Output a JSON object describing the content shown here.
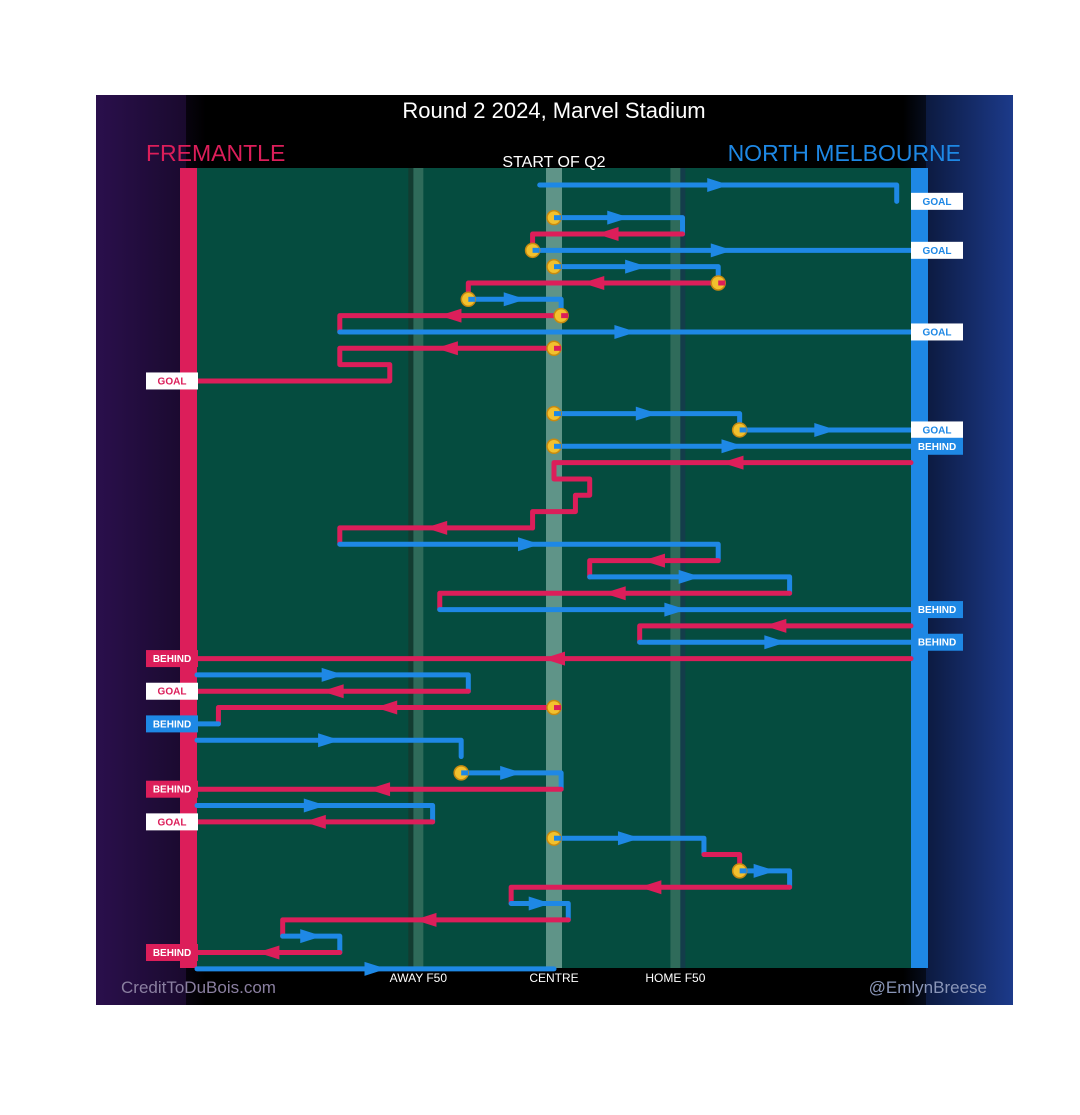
{
  "title": "Round 2 2024, Marvel Stadium",
  "subtitle": "START OF Q2",
  "teams": {
    "away": {
      "name": "FREMANTLE",
      "color": "#dc1e5a"
    },
    "home": {
      "name": "NORTH MELBOURNE",
      "color": "#1e88e5"
    }
  },
  "zone_labels": [
    "AWAY F50",
    "CENTRE",
    "HOME F50"
  ],
  "credits": {
    "left": "CreditToDuBois.com",
    "right": "@EmlynBreese"
  },
  "colors": {
    "field": "#054c3f",
    "stoppage_marker": "#f2c12e",
    "background_left": "#2a0f4c",
    "background_right": "#1c3a8a"
  },
  "chart_data": {
    "type": "line",
    "description_of_axes": "x: field position from Fremantle goal (0) to North Melbourne goal (100); y: chain order top to bottom",
    "x_range": [
      0,
      100
    ],
    "zones": {
      "away_f50": 31,
      "centre": 50,
      "home_f50": 67
    },
    "chains": [
      {
        "team": "home",
        "path": [
          [
            48,
            1
          ],
          [
            98,
            1
          ],
          [
            98,
            2
          ]
        ],
        "start": "pass",
        "end": "GOAL"
      },
      {
        "team": "home",
        "path": [
          [
            50,
            3
          ],
          [
            68,
            3
          ],
          [
            68,
            4
          ]
        ],
        "start": "stoppage",
        "end": null
      },
      {
        "team": "away",
        "path": [
          [
            68,
            4
          ],
          [
            47,
            4
          ],
          [
            47,
            5
          ]
        ],
        "start": "pass",
        "end": null
      },
      {
        "team": "home",
        "path": [
          [
            47,
            5
          ],
          [
            100,
            5
          ]
        ],
        "start": "stoppage",
        "end": "GOAL"
      },
      {
        "team": "home",
        "path": [
          [
            50,
            6
          ],
          [
            73,
            6
          ],
          [
            73,
            7
          ]
        ],
        "start": "stoppage",
        "end": null
      },
      {
        "team": "away",
        "path": [
          [
            73,
            7
          ],
          [
            38,
            7
          ],
          [
            38,
            8
          ]
        ],
        "start": "stoppage",
        "end": null
      },
      {
        "team": "home",
        "path": [
          [
            38,
            8
          ],
          [
            51,
            8
          ],
          [
            51,
            9
          ]
        ],
        "start": "stoppage",
        "end": null
      },
      {
        "team": "away",
        "path": [
          [
            51,
            9
          ],
          [
            20,
            9
          ],
          [
            20,
            10
          ]
        ],
        "start": "stoppage",
        "end": null
      },
      {
        "team": "home",
        "path": [
          [
            20,
            10
          ],
          [
            100,
            10
          ]
        ],
        "start": "pass",
        "end": "GOAL"
      },
      {
        "team": "away",
        "path": [
          [
            50,
            11
          ],
          [
            20,
            11
          ],
          [
            20,
            12
          ],
          [
            27,
            12
          ],
          [
            27,
            13
          ],
          [
            0,
            13
          ]
        ],
        "start": "stoppage",
        "end": "GOAL"
      },
      {
        "team": "home",
        "path": [
          [
            50,
            15
          ],
          [
            76,
            15
          ],
          [
            76,
            16
          ]
        ],
        "start": "stoppage",
        "end": null
      },
      {
        "team": "home",
        "path": [
          [
            76,
            16
          ],
          [
            100,
            16
          ]
        ],
        "start": "stoppage",
        "end": "GOAL"
      },
      {
        "team": "home",
        "path": [
          [
            50,
            17
          ],
          [
            100,
            17
          ]
        ],
        "start": "stoppage",
        "end": "BEHIND"
      },
      {
        "team": "away",
        "path": [
          [
            100,
            18
          ],
          [
            50,
            18
          ],
          [
            50,
            19
          ],
          [
            55,
            19
          ],
          [
            55,
            20
          ],
          [
            53,
            20
          ],
          [
            53,
            21
          ],
          [
            47,
            21
          ],
          [
            47,
            22
          ]
        ],
        "start": "pass",
        "end": null
      },
      {
        "team": "away",
        "path": [
          [
            47,
            22
          ],
          [
            20,
            22
          ],
          [
            20,
            23
          ]
        ],
        "start": "pass",
        "end": null
      },
      {
        "team": "home",
        "path": [
          [
            20,
            23
          ],
          [
            73,
            23
          ],
          [
            73,
            24
          ]
        ],
        "start": "pass",
        "end": null
      },
      {
        "team": "away",
        "path": [
          [
            73,
            24
          ],
          [
            55,
            24
          ],
          [
            55,
            25
          ]
        ],
        "start": "pass",
        "end": null
      },
      {
        "team": "home",
        "path": [
          [
            55,
            25
          ],
          [
            83,
            25
          ],
          [
            83,
            26
          ]
        ],
        "start": "pass",
        "end": null
      },
      {
        "team": "away",
        "path": [
          [
            83,
            26
          ],
          [
            34,
            26
          ],
          [
            34,
            27
          ]
        ],
        "start": "pass",
        "end": null
      },
      {
        "team": "home",
        "path": [
          [
            34,
            27
          ],
          [
            100,
            27
          ]
        ],
        "start": "pass",
        "end": "BEHIND"
      },
      {
        "team": "away",
        "path": [
          [
            100,
            28
          ],
          [
            62,
            28
          ],
          [
            62,
            29
          ]
        ],
        "start": "pass",
        "end": null
      },
      {
        "team": "home",
        "path": [
          [
            62,
            29
          ],
          [
            100,
            29
          ]
        ],
        "start": "pass",
        "end": "BEHIND"
      },
      {
        "team": "away",
        "path": [
          [
            100,
            30
          ],
          [
            0,
            30
          ]
        ],
        "start": "pass",
        "end": "BEHIND"
      },
      {
        "team": "home",
        "path": [
          [
            0,
            31
          ],
          [
            38,
            31
          ],
          [
            38,
            32
          ]
        ],
        "start": "pass",
        "end": null
      },
      {
        "team": "away",
        "path": [
          [
            38,
            32
          ],
          [
            0,
            32
          ]
        ],
        "start": "pass",
        "end": "GOAL"
      },
      {
        "team": "away",
        "path": [
          [
            50,
            33
          ],
          [
            3,
            33
          ],
          [
            3,
            34
          ]
        ],
        "start": "stoppage",
        "end": null
      },
      {
        "team": "home",
        "path": [
          [
            3,
            34
          ],
          [
            0,
            34
          ]
        ],
        "start": "pass",
        "end": "BEHIND"
      },
      {
        "team": "home",
        "path": [
          [
            0,
            35
          ],
          [
            37,
            35
          ],
          [
            37,
            36
          ]
        ],
        "start": "pass",
        "end": null
      },
      {
        "team": "home",
        "path": [
          [
            37,
            37
          ],
          [
            51,
            37
          ],
          [
            51,
            38
          ]
        ],
        "start": "stoppage",
        "end": null
      },
      {
        "team": "away",
        "path": [
          [
            51,
            38
          ],
          [
            0,
            38
          ]
        ],
        "start": "pass",
        "end": "BEHIND"
      },
      {
        "team": "home",
        "path": [
          [
            0,
            39
          ],
          [
            33,
            39
          ],
          [
            33,
            40
          ]
        ],
        "start": "pass",
        "end": null
      },
      {
        "team": "away",
        "path": [
          [
            33,
            40
          ],
          [
            0,
            40
          ]
        ],
        "start": "pass",
        "end": "GOAL"
      },
      {
        "team": "home",
        "path": [
          [
            50,
            41
          ],
          [
            71,
            41
          ],
          [
            71,
            42
          ]
        ],
        "start": "stoppage",
        "end": null
      },
      {
        "team": "away",
        "path": [
          [
            71,
            42
          ],
          [
            76,
            42
          ],
          [
            76,
            43
          ]
        ],
        "start": "pass",
        "end": null
      },
      {
        "team": "home",
        "path": [
          [
            76,
            43
          ],
          [
            83,
            43
          ],
          [
            83,
            44
          ]
        ],
        "start": "stoppage",
        "end": null
      },
      {
        "team": "away",
        "path": [
          [
            83,
            44
          ],
          [
            44,
            44
          ],
          [
            44,
            45
          ]
        ],
        "start": "pass",
        "end": null
      },
      {
        "team": "home",
        "path": [
          [
            44,
            45
          ],
          [
            52,
            45
          ],
          [
            52,
            46
          ]
        ],
        "start": "pass",
        "end": null
      },
      {
        "team": "away",
        "path": [
          [
            52,
            46
          ],
          [
            12,
            46
          ],
          [
            12,
            47
          ]
        ],
        "start": "pass",
        "end": null
      },
      {
        "team": "home",
        "path": [
          [
            12,
            47
          ],
          [
            20,
            47
          ],
          [
            20,
            48
          ]
        ],
        "start": "pass",
        "end": null
      },
      {
        "team": "away",
        "path": [
          [
            20,
            48
          ],
          [
            0,
            48
          ]
        ],
        "start": "pass",
        "end": "BEHIND"
      },
      {
        "team": "home",
        "path": [
          [
            0,
            49
          ],
          [
            50,
            49
          ]
        ],
        "start": "pass",
        "end": null
      }
    ]
  }
}
